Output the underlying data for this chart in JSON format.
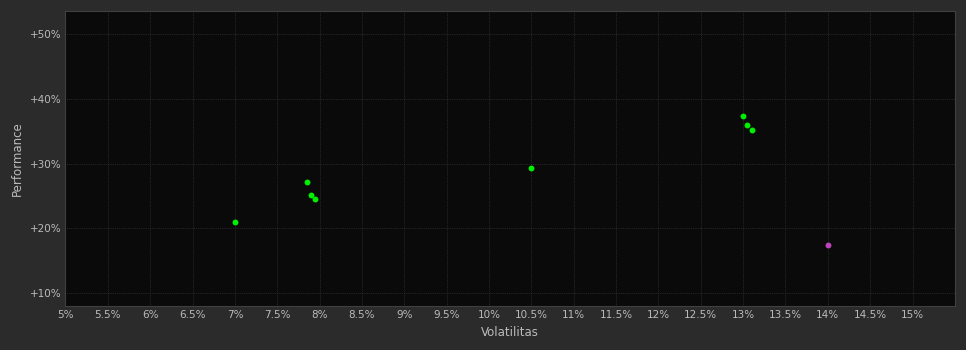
{
  "background_color": "#2b2b2b",
  "plot_bg_color": "#0a0a0a",
  "grid_color": "#404040",
  "xlabel": "Volatilitas",
  "ylabel": "Performance",
  "xlim": [
    0.05,
    0.155
  ],
  "ylim": [
    0.08,
    0.535
  ],
  "xticks": [
    0.05,
    0.055,
    0.06,
    0.065,
    0.07,
    0.075,
    0.08,
    0.085,
    0.09,
    0.095,
    0.1,
    0.105,
    0.11,
    0.115,
    0.12,
    0.125,
    0.13,
    0.135,
    0.14,
    0.145,
    0.15
  ],
  "yticks": [
    0.1,
    0.2,
    0.3,
    0.4,
    0.5
  ],
  "ytick_labels": [
    "+10%",
    "+20%",
    "+30%",
    "+40%",
    "+50%"
  ],
  "xtick_labels": [
    "5%",
    "5.5%",
    "6%",
    "6.5%",
    "7%",
    "7.5%",
    "8%",
    "8.5%",
    "9%",
    "9.5%",
    "10%",
    "10.5%",
    "11%",
    "11.5%",
    "12%",
    "12.5%",
    "13%",
    "13.5%",
    "14%",
    "14.5%",
    "15%"
  ],
  "green_points": [
    [
      0.07,
      0.21
    ],
    [
      0.0785,
      0.272
    ],
    [
      0.079,
      0.252
    ],
    [
      0.0795,
      0.246
    ],
    [
      0.105,
      0.293
    ],
    [
      0.13,
      0.373
    ],
    [
      0.1305,
      0.36
    ],
    [
      0.131,
      0.352
    ]
  ],
  "magenta_points": [
    [
      0.14,
      0.175
    ]
  ],
  "green_color": "#00ee00",
  "magenta_color": "#bb44bb",
  "marker_size": 18,
  "tick_color": "#bbbbbb",
  "label_color": "#bbbbbb",
  "font_size_ticks": 7.5,
  "font_size_labels": 8.5
}
